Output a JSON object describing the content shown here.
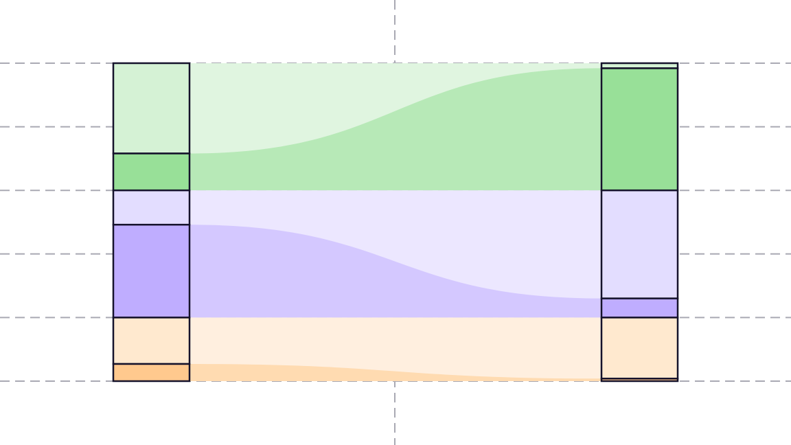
{
  "chart_data": {
    "type": "sankey",
    "title": "",
    "grid": true,
    "groups": [
      {
        "name": "green",
        "total": 1.0,
        "left_highlight": 0.29,
        "right_highlight": 0.96,
        "colors": {
          "base_segment": "#d5f2d5",
          "highlight_segment": "#98e098",
          "base_band": "#e0f5e0",
          "highlight_band": "#b7e9b7"
        }
      },
      {
        "name": "purple",
        "total": 1.0,
        "left_highlight": 0.73,
        "right_highlight": 0.15,
        "colors": {
          "base_segment": "#e3ddff",
          "highlight_segment": "#bfadff",
          "base_band": "#ece7ff",
          "highlight_band": "#d4c8ff"
        }
      },
      {
        "name": "orange",
        "total": 0.5,
        "left_highlight": 0.27,
        "right_highlight": 0.04,
        "colors": {
          "base_segment": "#ffe9cf",
          "highlight_segment": "#ffc98e",
          "base_band": "#ffefdf",
          "highlight_band": "#ffdbb1"
        }
      }
    ]
  }
}
